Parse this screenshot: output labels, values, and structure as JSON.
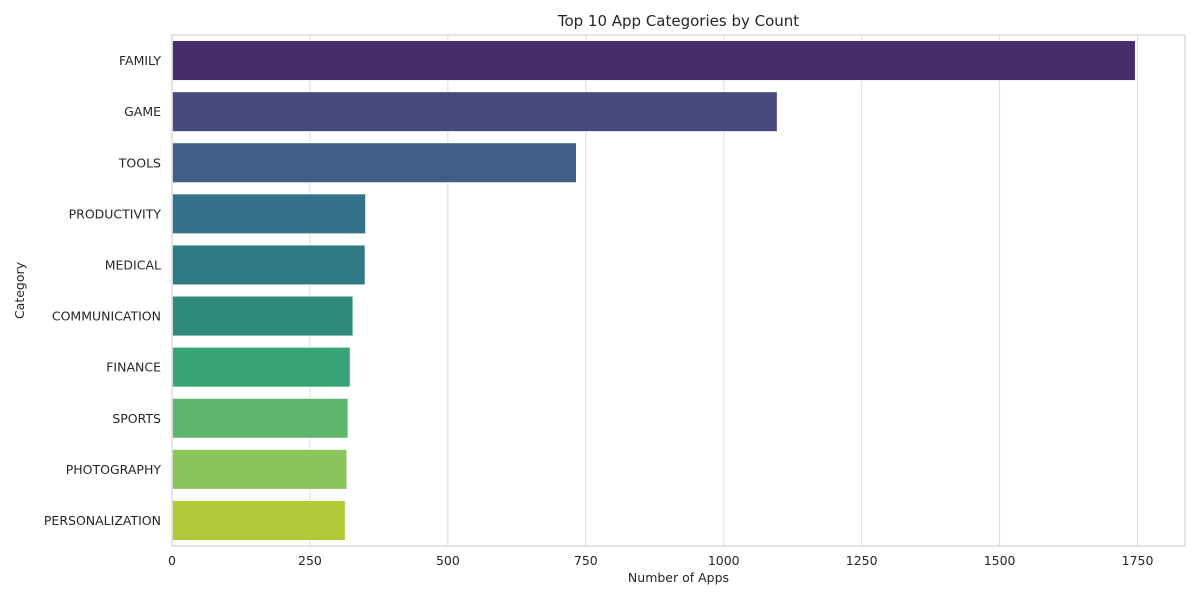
{
  "chart_data": {
    "type": "bar",
    "orientation": "horizontal",
    "title": "Top 10 App Categories by Count",
    "xlabel": "Number of Apps",
    "ylabel": "Category",
    "categories": [
      "FAMILY",
      "GAME",
      "TOOLS",
      "PRODUCTIVITY",
      "MEDICAL",
      "COMMUNICATION",
      "FINANCE",
      "SPORTS",
      "PHOTOGRAPHY",
      "PERSONALIZATION"
    ],
    "values": [
      1746,
      1097,
      733,
      351,
      350,
      328,
      323,
      319,
      317,
      314
    ],
    "colors": [
      "#482d6b",
      "#484a7f",
      "#405d86",
      "#35718a",
      "#2e7a84",
      "#2e8b7c",
      "#36a477",
      "#60b56d",
      "#8bc45a",
      "#b2c938"
    ],
    "xlim": [
      0,
      1836
    ],
    "xticks": [
      0,
      250,
      500,
      750,
      1000,
      1250,
      1500,
      1750
    ],
    "xtick_labels": [
      "0",
      "250",
      "500",
      "750",
      "1000",
      "1250",
      "1500",
      "1750"
    ],
    "grid": true,
    "legend": "none"
  }
}
